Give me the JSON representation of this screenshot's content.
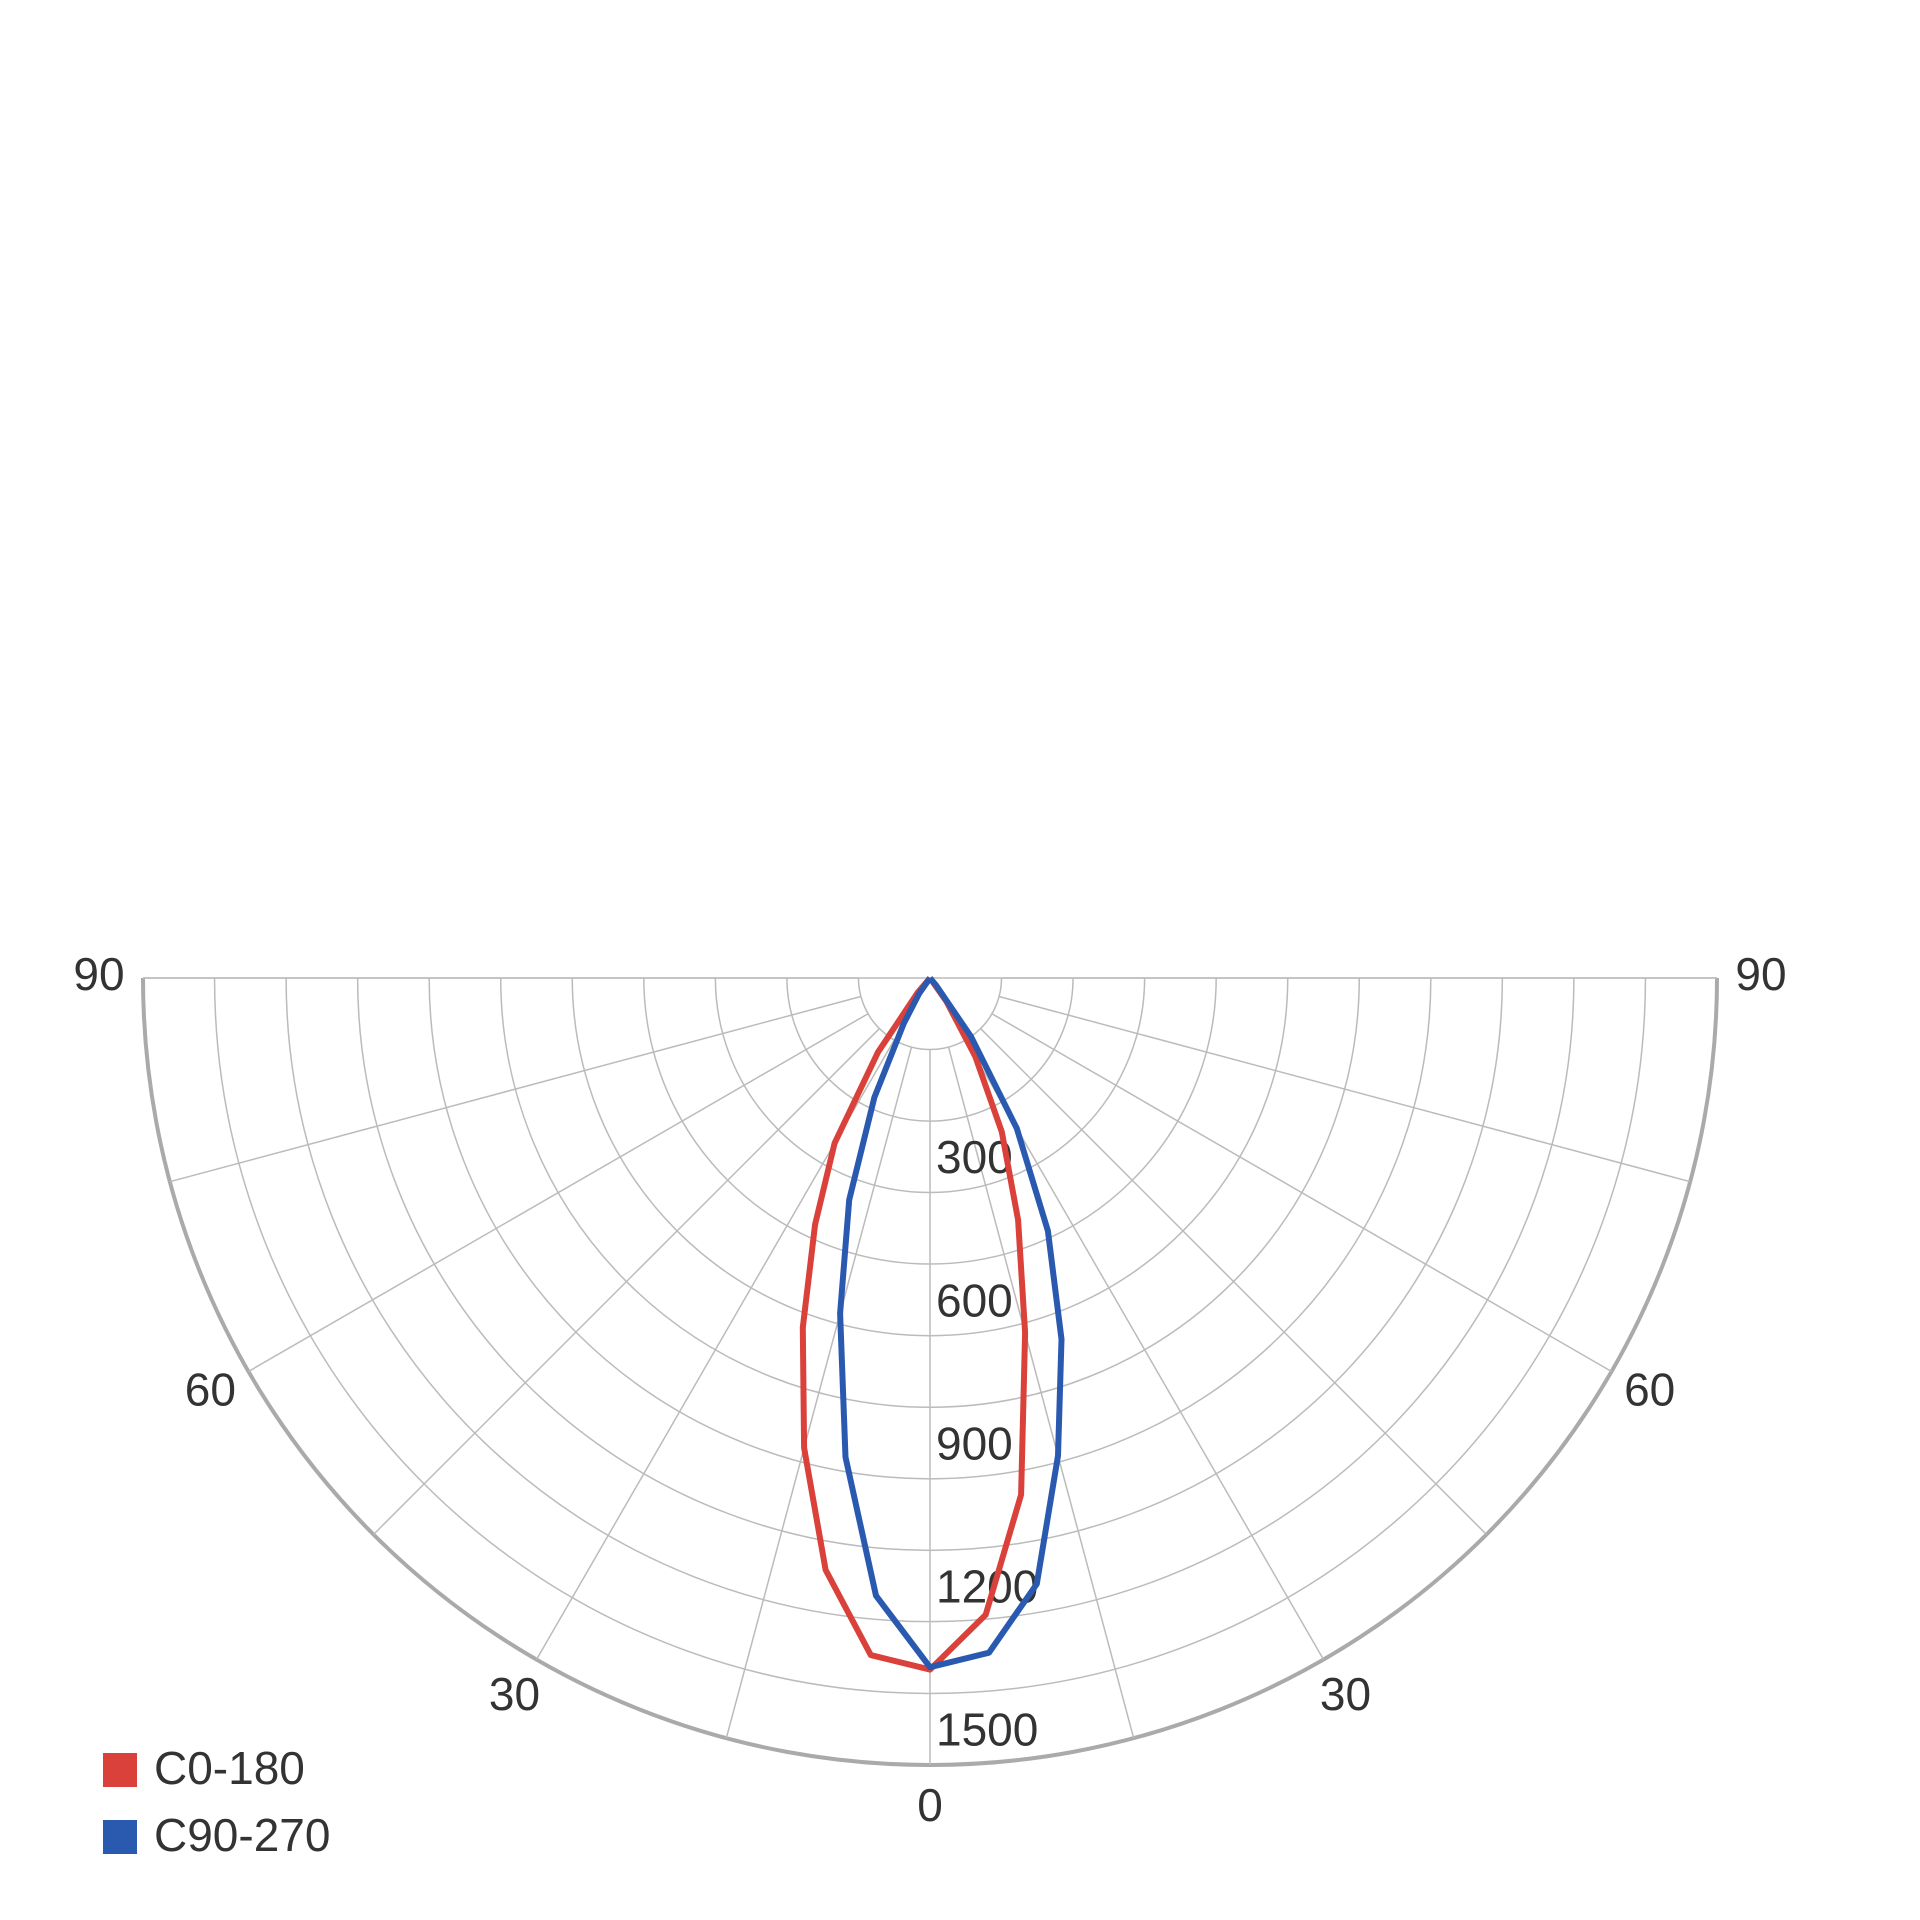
{
  "chart_data": {
    "type": "polar",
    "angles": [
      -45,
      -40,
      -35,
      -30,
      -25,
      -20,
      -15,
      -10,
      -5,
      0,
      5,
      10,
      15,
      20,
      25,
      30,
      35,
      40,
      45
    ],
    "series": [
      {
        "name": "C0-180",
        "color": "#d9413a",
        "values": [
          0,
          40,
          190,
          400,
          570,
          780,
          1020,
          1260,
          1425,
          1450,
          1340,
          1100,
          770,
          540,
          356,
          190,
          60,
          0,
          0
        ]
      },
      {
        "name": "C90-270",
        "color": "#2a5ab0",
        "values": [
          0,
          0,
          40,
          110,
          276,
          495,
          728,
          1020,
          1300,
          1445,
          1420,
          1290,
          1037,
          806,
          585,
          364,
          150,
          20,
          0
        ]
      }
    ],
    "rlim": [
      0,
      1650
    ],
    "rticks": [
      300,
      600,
      900,
      1200,
      1500
    ],
    "rgrid": [
      150,
      300,
      450,
      600,
      750,
      900,
      1050,
      1200,
      1350,
      1500,
      1650
    ],
    "angle_grid": [
      -90,
      -75,
      -60,
      -45,
      -30,
      -15,
      0,
      15,
      30,
      45,
      60,
      75,
      90
    ],
    "angle_ticks": [
      {
        "value": -90,
        "label": "90"
      },
      {
        "value": -60,
        "label": "60"
      },
      {
        "value": -30,
        "label": "30"
      },
      0,
      30,
      60,
      90
    ],
    "legend": "bottom-left"
  }
}
